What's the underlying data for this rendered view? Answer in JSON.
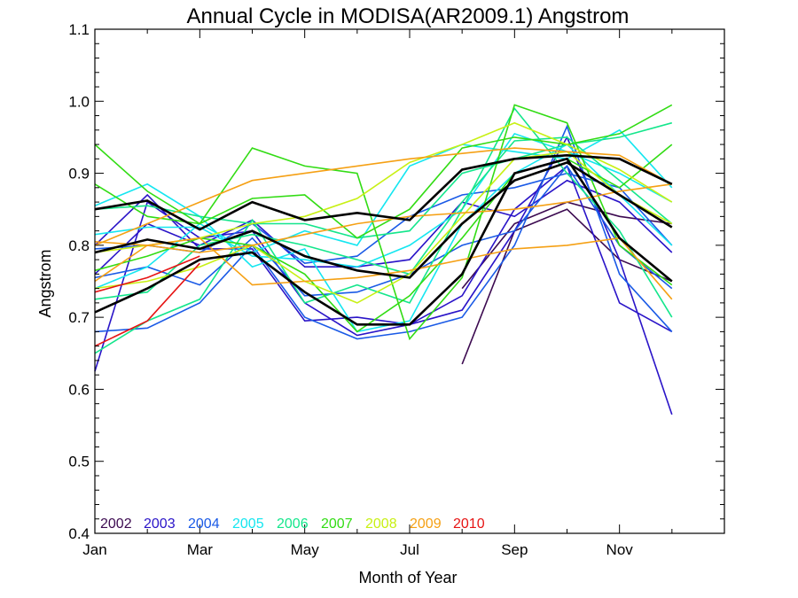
{
  "chart_data": {
    "type": "line",
    "title": "Annual Cycle in MODISA(AR2009.1) Angstrom",
    "xlabel": "Month of Year",
    "ylabel": "Angstrom",
    "xlim": [
      1,
      13
    ],
    "ylim": [
      0.4,
      1.1
    ],
    "x_ticks": [
      {
        "value": 1,
        "label": "Jan"
      },
      {
        "value": 3,
        "label": "Mar"
      },
      {
        "value": 5,
        "label": "May"
      },
      {
        "value": 7,
        "label": "Jul"
      },
      {
        "value": 9,
        "label": "Sep"
      },
      {
        "value": 11,
        "label": "Nov"
      }
    ],
    "y_ticks": [
      {
        "value": 0.4,
        "label": "0.4"
      },
      {
        "value": 0.5,
        "label": "0.5"
      },
      {
        "value": 0.6,
        "label": "0.6"
      },
      {
        "value": 0.7,
        "label": "0.7"
      },
      {
        "value": 0.8,
        "label": "0.8"
      },
      {
        "value": 0.9,
        "label": "0.9"
      },
      {
        "value": 1.0,
        "label": "1.0"
      },
      {
        "value": 1.1,
        "label": "1.1"
      }
    ],
    "grid": false,
    "legend_position": "bottom-left",
    "legend": [
      {
        "label": "2002",
        "color": "#3c0a50"
      },
      {
        "label": "2003",
        "color": "#2a14c8"
      },
      {
        "label": "2004",
        "color": "#1a5ae6"
      },
      {
        "label": "2005",
        "color": "#14e6f0"
      },
      {
        "label": "2006",
        "color": "#14e68c"
      },
      {
        "label": "2007",
        "color": "#32dc14"
      },
      {
        "label": "2008",
        "color": "#c8f014"
      },
      {
        "label": "2009",
        "color": "#f5a014"
      },
      {
        "label": "2010",
        "color": "#e61414"
      }
    ],
    "series": [
      {
        "color": "#3c0a50",
        "x": [
          8,
          9,
          10,
          11,
          12
        ],
        "values": [
          0.635,
          0.82,
          0.85,
          0.78,
          0.75
        ]
      },
      {
        "color": "#3c0a50",
        "x": [
          8,
          9,
          10,
          11,
          12
        ],
        "values": [
          0.74,
          0.83,
          0.86,
          0.84,
          0.83
        ]
      },
      {
        "color": "#2a14c8",
        "x": [
          1,
          2,
          3,
          4,
          5,
          6,
          7,
          8,
          9,
          10,
          11,
          12
        ],
        "values": [
          0.625,
          0.86,
          0.81,
          0.82,
          0.72,
          0.675,
          0.69,
          0.71,
          0.82,
          0.95,
          0.78,
          0.565
        ]
      },
      {
        "color": "#2a14c8",
        "x": [
          1,
          2,
          3,
          4,
          5,
          6,
          7,
          8,
          9,
          10,
          11,
          12
        ],
        "values": [
          0.8,
          0.87,
          0.795,
          0.795,
          0.695,
          0.7,
          0.69,
          0.73,
          0.85,
          0.91,
          0.72,
          0.68
        ]
      },
      {
        "color": "#2a14c8",
        "x": [
          1,
          2,
          3,
          4,
          5,
          6,
          7,
          8,
          9,
          10,
          11,
          12
        ],
        "values": [
          0.76,
          0.83,
          0.8,
          0.835,
          0.77,
          0.77,
          0.78,
          0.86,
          0.84,
          0.89,
          0.86,
          0.79
        ]
      },
      {
        "color": "#1a5ae6",
        "x": [
          1,
          2,
          3,
          4,
          5,
          6,
          7,
          8,
          9,
          10,
          11,
          12
        ],
        "values": [
          0.68,
          0.685,
          0.72,
          0.8,
          0.7,
          0.67,
          0.68,
          0.7,
          0.8,
          0.965,
          0.76,
          0.68
        ]
      },
      {
        "color": "#1a5ae6",
        "x": [
          1,
          2,
          3,
          4,
          5,
          6,
          7,
          8,
          9,
          10,
          11,
          12
        ],
        "values": [
          0.755,
          0.77,
          0.745,
          0.81,
          0.73,
          0.735,
          0.76,
          0.8,
          0.82,
          0.91,
          0.8,
          0.74
        ]
      },
      {
        "color": "#1a5ae6",
        "x": [
          1,
          2,
          3,
          4,
          5,
          6,
          7,
          8,
          9,
          10,
          11,
          12
        ],
        "values": [
          0.795,
          0.8,
          0.79,
          0.83,
          0.775,
          0.785,
          0.84,
          0.87,
          0.88,
          0.9,
          0.88,
          0.8
        ]
      },
      {
        "color": "#14e6f0",
        "x": [
          1,
          2,
          3,
          4,
          5,
          6,
          7,
          8,
          9,
          10,
          11,
          12
        ],
        "values": [
          0.855,
          0.885,
          0.84,
          0.77,
          0.795,
          0.68,
          0.695,
          0.83,
          0.9,
          0.94,
          0.87,
          0.8
        ]
      },
      {
        "color": "#14e6f0",
        "x": [
          1,
          2,
          3,
          4,
          5,
          6,
          7,
          8,
          9,
          10,
          11,
          12
        ],
        "values": [
          0.815,
          0.825,
          0.825,
          0.785,
          0.78,
          0.77,
          0.8,
          0.85,
          0.955,
          0.93,
          0.9,
          0.86
        ]
      },
      {
        "color": "#14e6f0",
        "x": [
          1,
          2,
          3,
          4,
          5,
          6,
          7,
          8,
          9,
          10,
          11,
          12
        ],
        "values": [
          0.74,
          0.77,
          0.83,
          0.79,
          0.82,
          0.8,
          0.91,
          0.94,
          0.93,
          0.92,
          0.96,
          0.88
        ]
      },
      {
        "color": "#14e68c",
        "x": [
          1,
          2,
          3,
          4,
          5,
          6,
          7,
          8,
          9,
          10,
          11,
          12
        ],
        "values": [
          0.65,
          0.695,
          0.725,
          0.835,
          0.72,
          0.745,
          0.72,
          0.85,
          0.99,
          0.9,
          0.82,
          0.7
        ]
      },
      {
        "color": "#14e68c",
        "x": [
          1,
          2,
          3,
          4,
          5,
          6,
          7,
          8,
          9,
          10,
          11,
          12
        ],
        "values": [
          0.725,
          0.735,
          0.8,
          0.815,
          0.8,
          0.78,
          0.76,
          0.86,
          0.945,
          0.95,
          0.89,
          0.83
        ]
      },
      {
        "color": "#14e68c",
        "x": [
          1,
          2,
          3,
          4,
          5,
          6,
          7,
          8,
          9,
          10,
          11,
          12
        ],
        "values": [
          0.85,
          0.855,
          0.84,
          0.83,
          0.83,
          0.81,
          0.82,
          0.9,
          0.92,
          0.94,
          0.95,
          0.97
        ]
      },
      {
        "color": "#32dc14",
        "x": [
          1,
          2,
          3,
          4,
          5,
          6,
          7,
          8,
          9,
          10,
          11,
          12
        ],
        "values": [
          0.94,
          0.875,
          0.83,
          0.935,
          0.91,
          0.9,
          0.67,
          0.755,
          0.995,
          0.97,
          0.8,
          0.745
        ]
      },
      {
        "color": "#32dc14",
        "x": [
          1,
          2,
          3,
          4,
          5,
          6,
          7,
          8,
          9,
          10,
          11,
          12
        ],
        "values": [
          0.885,
          0.84,
          0.83,
          0.865,
          0.87,
          0.81,
          0.85,
          0.935,
          0.95,
          0.94,
          0.955,
          0.995
        ]
      },
      {
        "color": "#32dc14",
        "x": [
          1,
          2,
          3,
          4,
          5,
          6,
          7,
          8,
          9,
          10,
          11,
          12
        ],
        "values": [
          0.765,
          0.785,
          0.81,
          0.8,
          0.76,
          0.68,
          0.73,
          0.81,
          0.9,
          0.92,
          0.88,
          0.94
        ]
      },
      {
        "color": "#c8f014",
        "x": [
          1,
          2,
          3,
          4,
          5,
          6,
          7,
          8,
          9,
          10,
          11,
          12
        ],
        "values": [
          0.79,
          0.8,
          0.81,
          0.83,
          0.84,
          0.865,
          0.915,
          0.94,
          0.97,
          0.94,
          0.905,
          0.86
        ]
      },
      {
        "color": "#c8f014",
        "x": [
          1,
          2,
          3,
          4,
          5,
          6,
          7,
          8,
          9,
          10,
          11,
          12
        ],
        "values": [
          0.74,
          0.75,
          0.77,
          0.8,
          0.75,
          0.72,
          0.76,
          0.84,
          0.92,
          0.93,
          0.87,
          0.83
        ]
      },
      {
        "color": "#f5a014",
        "x": [
          1,
          4,
          7,
          9,
          10,
          11,
          12
        ],
        "values": [
          0.8,
          0.89,
          0.92,
          0.935,
          0.93,
          0.925,
          0.885
        ]
      },
      {
        "color": "#f5a014",
        "x": [
          1,
          2,
          3,
          4,
          5,
          6,
          7,
          8,
          9,
          10,
          11,
          12
        ],
        "values": [
          0.805,
          0.8,
          0.81,
          0.745,
          0.75,
          0.755,
          0.765,
          0.78,
          0.795,
          0.8,
          0.81,
          0.725
        ]
      },
      {
        "color": "#f5a014",
        "x": [
          1,
          2,
          3,
          4,
          5,
          6,
          7,
          8,
          9,
          10,
          11,
          12
        ],
        "values": [
          0.75,
          0.8,
          0.79,
          0.8,
          0.815,
          0.83,
          0.84,
          0.845,
          0.85,
          0.86,
          0.875,
          0.885
        ]
      },
      {
        "color": "#e61414",
        "x": [
          1,
          2,
          3
        ],
        "values": [
          0.66,
          0.695,
          0.775
        ]
      },
      {
        "color": "#e61414",
        "x": [
          1,
          2,
          3
        ],
        "values": [
          0.735,
          0.755,
          0.785
        ]
      },
      {
        "color": "#000000",
        "x": [
          1,
          2,
          3,
          4,
          5,
          6,
          7,
          8,
          9,
          10,
          11,
          12
        ],
        "values": [
          0.85,
          0.862,
          0.822,
          0.86,
          0.835,
          0.845,
          0.835,
          0.905,
          0.92,
          0.925,
          0.92,
          0.885
        ]
      },
      {
        "color": "#000000",
        "x": [
          1,
          2,
          3,
          4,
          5,
          6,
          7,
          8,
          9,
          10,
          11,
          12
        ],
        "values": [
          0.79,
          0.808,
          0.795,
          0.82,
          0.785,
          0.765,
          0.755,
          0.83,
          0.89,
          0.915,
          0.87,
          0.825
        ]
      },
      {
        "color": "#000000",
        "x": [
          1,
          2,
          3,
          4,
          5,
          6,
          7,
          8,
          9,
          10,
          11,
          12
        ],
        "values": [
          0.707,
          0.74,
          0.78,
          0.79,
          0.735,
          0.69,
          0.69,
          0.76,
          0.9,
          0.92,
          0.81,
          0.75
        ]
      }
    ]
  }
}
